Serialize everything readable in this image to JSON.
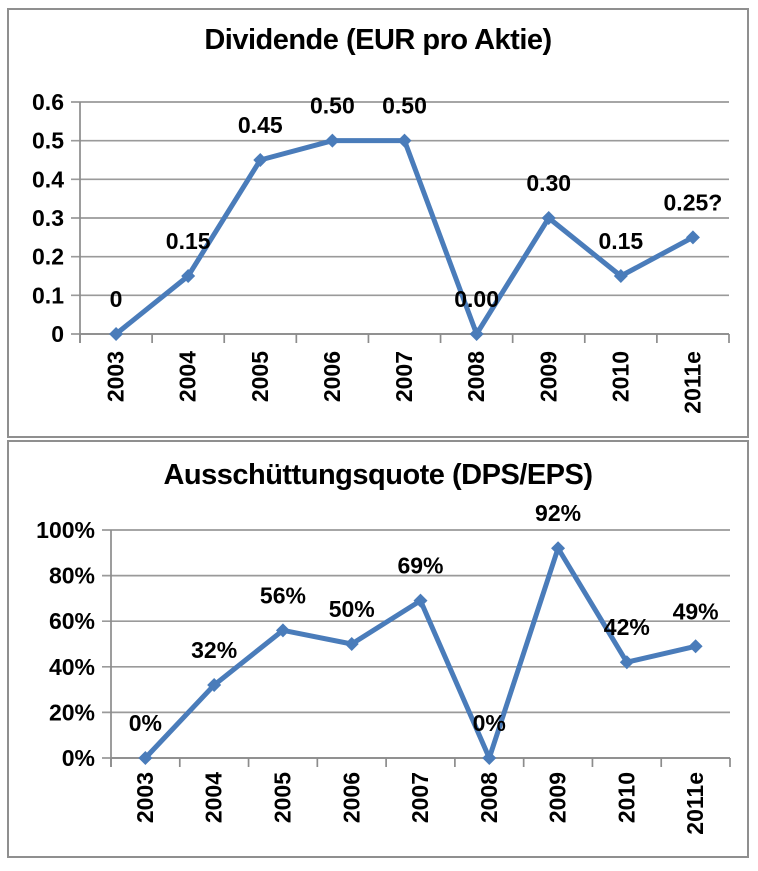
{
  "colors": {
    "line": "#4a7cba",
    "marker": "#4a7cba",
    "grid": "#9a9a9a",
    "axis": "#8c8c8c",
    "text": "#000000",
    "panel_border": "#8f8f8f",
    "background": "#ffffff"
  },
  "chart_data": [
    {
      "type": "line",
      "title": "Dividende (EUR pro Aktie)",
      "categories": [
        "2003",
        "2004",
        "2005",
        "2006",
        "2007",
        "2008",
        "2009",
        "2010",
        "2011e"
      ],
      "values": [
        0,
        0.15,
        0.45,
        0.5,
        0.5,
        0.0,
        0.3,
        0.15,
        0.25
      ],
      "point_labels": [
        "0",
        "0.15",
        "0.45",
        "0.50",
        "0.50",
        "0.00",
        "0.30",
        "0.15",
        "0.25?"
      ],
      "ylim": [
        0,
        0.6
      ],
      "ytick_labels": [
        "0",
        "0.1",
        "0.2",
        "0.3",
        "0.4",
        "0.5",
        "0.6"
      ],
      "grid": true,
      "legend": "none",
      "marker_shape": "diamond"
    },
    {
      "type": "line",
      "title": "Ausschüttungsquote (DPS/EPS)",
      "categories": [
        "2003",
        "2004",
        "2005",
        "2006",
        "2007",
        "2008",
        "2009",
        "2010",
        "2011e"
      ],
      "values": [
        0,
        32,
        56,
        50,
        69,
        0,
        92,
        42,
        49
      ],
      "point_labels": [
        "0%",
        "32%",
        "56%",
        "50%",
        "69%",
        "0%",
        "92%",
        "42%",
        "49%"
      ],
      "ylim": [
        0,
        100
      ],
      "ytick_labels": [
        "0%",
        "20%",
        "40%",
        "60%",
        "80%",
        "100%"
      ],
      "grid": true,
      "legend": "none",
      "marker_shape": "diamond"
    }
  ]
}
